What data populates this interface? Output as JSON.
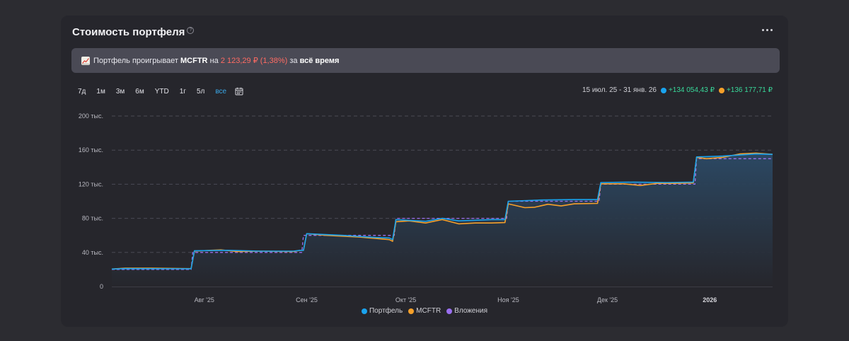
{
  "card": {
    "title": "Стоимость портфеля",
    "info_symbol": "?"
  },
  "banner": {
    "text_prefix": "Портфель проигрывает",
    "benchmark": "MCFTR",
    "text_on": "на",
    "amount": "2 123,29 ₽",
    "percent": "(1,38%)",
    "text_for": "за",
    "period": "всё время"
  },
  "periods": [
    "7д",
    "1м",
    "3м",
    "6м",
    "YTD",
    "1г",
    "5л",
    "все"
  ],
  "active_period": "все",
  "range": {
    "dates": "15 июл. 25 - 31 янв. 26",
    "portfolio_change": "+134 054,43 ₽",
    "mcftr_change": "+136 177,71 ₽"
  },
  "colors": {
    "portfolio": "#1aa3ee",
    "mcftr": "#f6a02a",
    "investments": "#9a6ff0",
    "grid": "#4a4a55",
    "axis_text": "#b8b8c0",
    "area_top": "#2c4a66",
    "area_bottom": "#26262c"
  },
  "chart_data": {
    "type": "line",
    "title": "Стоимость портфеля",
    "x_range": [
      "2025-07-15",
      "2026-01-31"
    ],
    "x_ticks": [
      {
        "label": "Авг '25",
        "day": 28,
        "bold": false
      },
      {
        "label": "Сен '25",
        "day": 59,
        "bold": false
      },
      {
        "label": "Окт '25",
        "day": 89,
        "bold": false
      },
      {
        "label": "Ноя '25",
        "day": 120,
        "bold": false
      },
      {
        "label": "Дек '25",
        "day": 150,
        "bold": false
      },
      {
        "label": "2026",
        "day": 181,
        "bold": true
      }
    ],
    "y_ticks": [
      {
        "label": "0",
        "value": 0
      },
      {
        "label": "40 тыс.",
        "value": 40000
      },
      {
        "label": "80 тыс.",
        "value": 80000
      },
      {
        "label": "120 тыс.",
        "value": 120000
      },
      {
        "label": "160 тыс.",
        "value": 160000
      },
      {
        "label": "200 тыс.",
        "value": 200000
      }
    ],
    "ylim": [
      0,
      200000
    ],
    "x_days_total": 200,
    "series": [
      {
        "name": "Портфель",
        "color": "#1aa3ee",
        "points": [
          [
            0,
            20500
          ],
          [
            4,
            21000
          ],
          [
            23,
            20800
          ],
          [
            24,
            20800
          ],
          [
            25,
            42000
          ],
          [
            35,
            42500
          ],
          [
            45,
            41500
          ],
          [
            55,
            41500
          ],
          [
            57,
            42500
          ],
          [
            58,
            42500
          ],
          [
            59,
            62000
          ],
          [
            70,
            60000
          ],
          [
            80,
            57500
          ],
          [
            84,
            57000
          ],
          [
            85,
            55000
          ],
          [
            86,
            78500
          ],
          [
            95,
            76500
          ],
          [
            100,
            80000
          ],
          [
            105,
            77000
          ],
          [
            115,
            78500
          ],
          [
            119,
            78500
          ],
          [
            120,
            100000
          ],
          [
            130,
            101500
          ],
          [
            140,
            102000
          ],
          [
            147,
            102000
          ],
          [
            148,
            122000
          ],
          [
            158,
            122500
          ],
          [
            168,
            122000
          ],
          [
            176,
            122500
          ],
          [
            177,
            152000
          ],
          [
            185,
            153000
          ],
          [
            195,
            155500
          ],
          [
            200,
            155000
          ]
        ]
      },
      {
        "name": "MCFTR",
        "color": "#f6a02a",
        "points": [
          [
            0,
            20500
          ],
          [
            4,
            21500
          ],
          [
            12,
            21500
          ],
          [
            23,
            21000
          ],
          [
            24,
            21000
          ],
          [
            25,
            41500
          ],
          [
            30,
            42500
          ],
          [
            33,
            43000
          ],
          [
            38,
            41000
          ],
          [
            45,
            41500
          ],
          [
            55,
            41000
          ],
          [
            57,
            42500
          ],
          [
            58,
            42500
          ],
          [
            59,
            62000
          ],
          [
            65,
            60000
          ],
          [
            75,
            58000
          ],
          [
            84,
            55000
          ],
          [
            85,
            53000
          ],
          [
            86,
            76000
          ],
          [
            90,
            77000
          ],
          [
            95,
            74500
          ],
          [
            100,
            78500
          ],
          [
            105,
            73500
          ],
          [
            110,
            74500
          ],
          [
            115,
            74500
          ],
          [
            119,
            75000
          ],
          [
            120,
            97000
          ],
          [
            125,
            92500
          ],
          [
            128,
            93000
          ],
          [
            132,
            96500
          ],
          [
            136,
            94500
          ],
          [
            140,
            97000
          ],
          [
            147,
            97500
          ],
          [
            148,
            120500
          ],
          [
            155,
            120500
          ],
          [
            160,
            118500
          ],
          [
            165,
            121000
          ],
          [
            170,
            121000
          ],
          [
            176,
            121500
          ],
          [
            177,
            151500
          ],
          [
            180,
            150000
          ],
          [
            185,
            151500
          ],
          [
            190,
            155500
          ],
          [
            195,
            156500
          ],
          [
            200,
            155000
          ]
        ]
      },
      {
        "name": "Вложения",
        "color": "#9a6ff0",
        "dashed": true,
        "points": [
          [
            0,
            20000
          ],
          [
            24,
            20000
          ],
          [
            24.5,
            40000
          ],
          [
            57.5,
            40000
          ],
          [
            58,
            60000
          ],
          [
            85.5,
            60000
          ],
          [
            86,
            80000
          ],
          [
            119.5,
            80000
          ],
          [
            120,
            100000
          ],
          [
            147.5,
            100000
          ],
          [
            148,
            120000
          ],
          [
            176.5,
            120000
          ],
          [
            177,
            150000
          ],
          [
            200,
            150000
          ]
        ]
      }
    ],
    "legend_position": "bottom-center",
    "grid": true
  }
}
